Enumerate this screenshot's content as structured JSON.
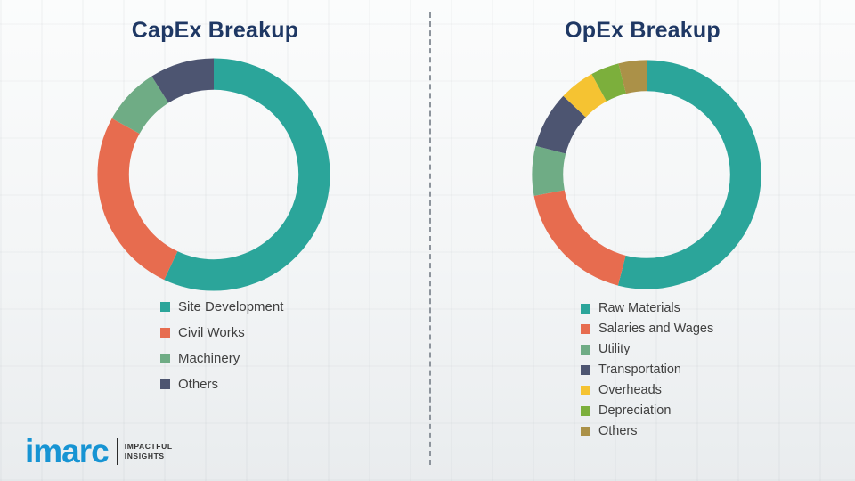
{
  "chart_data": [
    {
      "type": "pie",
      "donut": true,
      "title": "CapEx Breakup",
      "labels": [
        "Site Development",
        "Civil Works",
        "Machinery",
        "Others"
      ],
      "values": [
        57,
        26,
        8,
        9
      ],
      "colors": [
        "#2BA59A",
        "#E76C4F",
        "#6FAC85",
        "#4D5571"
      ],
      "legend_position": "below"
    },
    {
      "type": "pie",
      "donut": true,
      "title": "OpEx Breakup",
      "labels": [
        "Raw Materials",
        "Salaries and Wages",
        "Utility",
        "Transportation",
        "Overheads",
        "Depreciation",
        "Others"
      ],
      "values": [
        54,
        18,
        7,
        8,
        5,
        4,
        4
      ],
      "colors": [
        "#2BA59A",
        "#E76C4F",
        "#6FAC85",
        "#4D5571",
        "#F5C332",
        "#7CAF3C",
        "#AB9148"
      ],
      "legend_position": "below"
    }
  ],
  "divider": {
    "style": "dashed-vertical"
  },
  "logo": {
    "brand": "imarc",
    "tagline_line1": "IMPACTFUL",
    "tagline_line2": "INSIGHTS"
  },
  "title_color": "#1f3864"
}
